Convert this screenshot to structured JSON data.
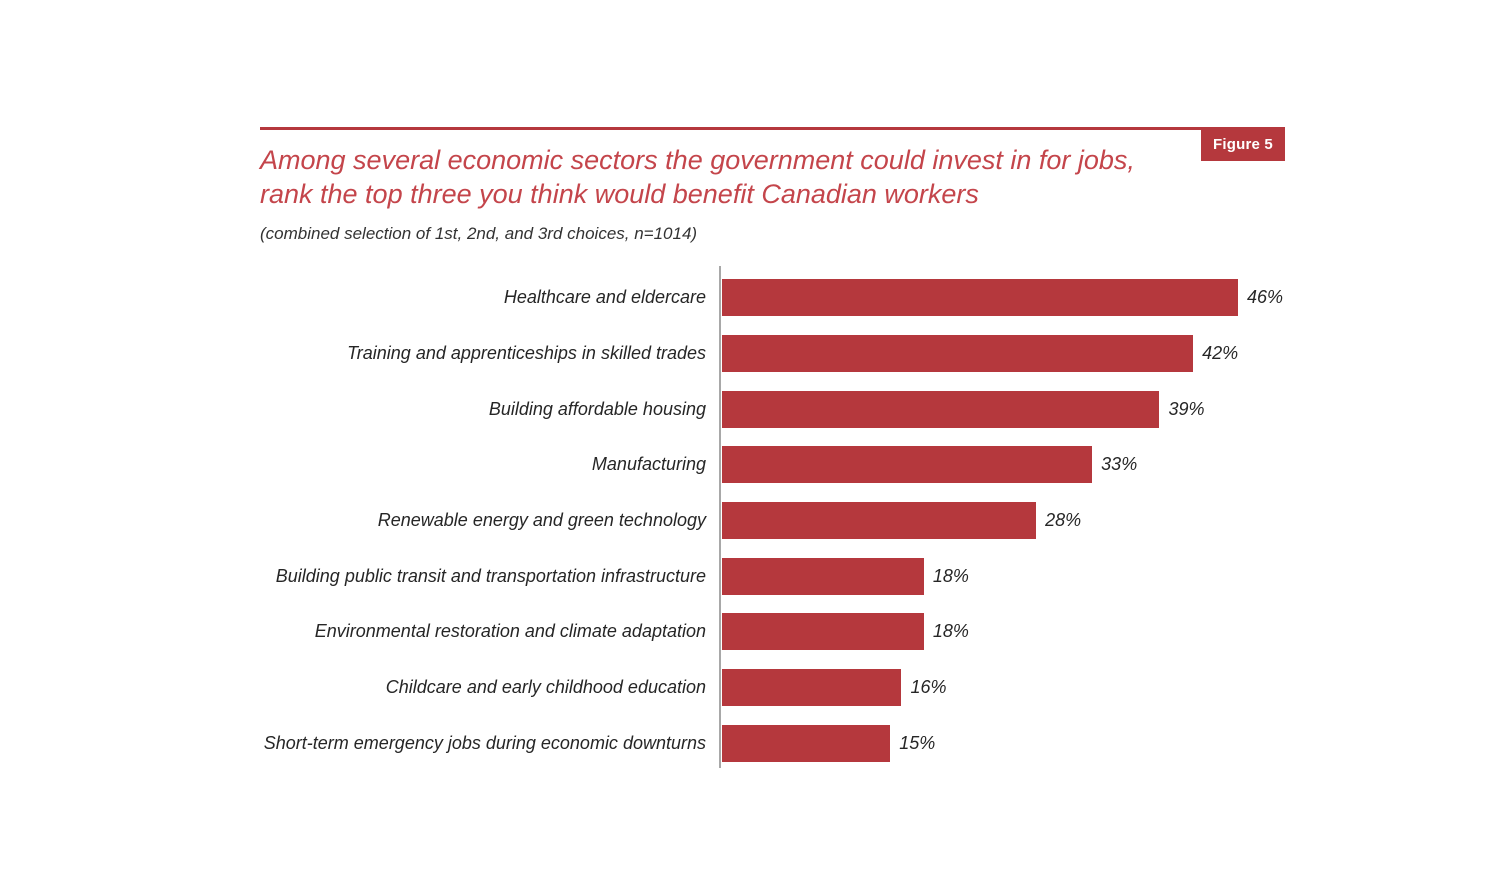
{
  "header": {
    "figure_label": "Figure 5",
    "title_lines": [
      "Among several economic sectors the government could invest in for jobs,",
      "rank the top three you think would benefit Canadian workers"
    ],
    "subtitle": "(combined selection of 1st, 2nd, and 3rd choices, n=1014)"
  },
  "colors": {
    "accent_red": "#b5383d",
    "title_red": "#c4454b",
    "axis_gray": "#a8a8a8",
    "text_dark": "#262626"
  },
  "chart_data": {
    "type": "bar",
    "orientation": "horizontal",
    "title": "Among several economic sectors the government could invest in for jobs, rank the top three you think would benefit Canadian workers",
    "subtitle": "(combined selection of 1st, 2nd, and 3rd choices, n=1014)",
    "categories": [
      "Healthcare and eldercare",
      "Training and apprenticeships in skilled trades",
      "Building affordable housing",
      "Manufacturing",
      "Renewable energy and green technology",
      "Building public transit and transportation infrastructure",
      "Environmental restoration and climate adaptation",
      "Childcare and early childhood education",
      "Short-term emergency jobs during economic downturns"
    ],
    "values": [
      46,
      42,
      39,
      33,
      28,
      18,
      18,
      16,
      15
    ],
    "value_labels": [
      "46%",
      "42%",
      "39%",
      "33%",
      "28%",
      "18%",
      "18%",
      "16%",
      "15%"
    ],
    "xlim": [
      0,
      50
    ],
    "grid": false,
    "legend": false,
    "bar_color": "#b5383d"
  }
}
